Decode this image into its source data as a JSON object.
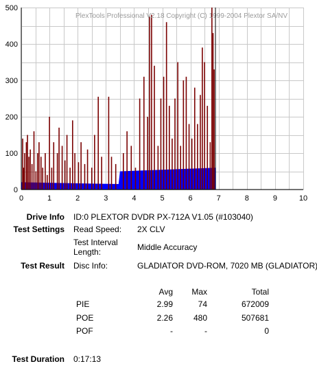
{
  "chart_data": {
    "type": "bar",
    "watermark": "PlexTools Professional V2.18 Copyright (C) 1999-2004 Plextor SA/NV",
    "xlim": [
      0,
      10
    ],
    "ylim": [
      0,
      500
    ],
    "x_ticks": [
      "0",
      "1",
      "2",
      "3",
      "4",
      "5",
      "6",
      "7",
      "8",
      "9",
      "10"
    ],
    "y_ticks": [
      "0",
      "100",
      "200",
      "300",
      "400",
      "500"
    ],
    "grid": true,
    "series": [
      {
        "color": "#7a0000",
        "x": [
          0.05,
          0.08,
          0.12,
          0.18,
          0.22,
          0.27,
          0.32,
          0.38,
          0.45,
          0.52,
          0.58,
          0.63,
          0.7,
          0.76,
          0.85,
          0.92,
          1.0,
          1.08,
          1.15,
          1.28,
          1.34,
          1.45,
          1.55,
          1.62,
          1.73,
          1.82,
          1.9,
          2.03,
          2.12,
          2.25,
          2.35,
          2.5,
          2.6,
          2.73,
          2.85,
          3.1,
          3.2,
          3.35,
          3.62,
          3.75,
          3.9,
          4.05,
          4.2,
          4.35,
          4.48,
          4.55,
          4.62,
          4.72,
          4.85,
          4.95,
          5.05,
          5.15,
          5.25,
          5.35,
          5.45,
          5.55,
          5.65,
          5.75,
          5.85,
          5.95,
          6.05,
          6.15,
          6.25,
          6.35,
          6.42,
          6.5,
          6.6,
          6.7,
          6.76,
          6.8,
          6.84
        ],
        "values": [
          140,
          60,
          100,
          130,
          150,
          90,
          110,
          70,
          160,
          50,
          100,
          130,
          90,
          60,
          100,
          40,
          200,
          60,
          130,
          100,
          170,
          120,
          80,
          150,
          60,
          190,
          100,
          75,
          130,
          70,
          110,
          60,
          150,
          255,
          90,
          255,
          90,
          70,
          100,
          160,
          120,
          60,
          250,
          310,
          200,
          475,
          480,
          340,
          120,
          250,
          310,
          460,
          230,
          140,
          250,
          350,
          120,
          300,
          310,
          180,
          140,
          280,
          180,
          260,
          390,
          350,
          230,
          130,
          500,
          430,
          330
        ]
      },
      {
        "color": "#0000ff",
        "x": [
          0,
          3.45,
          3.5,
          6.9
        ],
        "values": [
          20,
          15,
          50,
          60
        ]
      }
    ]
  },
  "drive_info": {
    "label": "Drive Info",
    "value": "ID:0 PLEXTOR DVDR PX-712A V1.05 (#103040)"
  },
  "test_settings": {
    "label": "Test Settings",
    "read_speed_label": "Read Speed:",
    "read_speed_value": "2X CLV",
    "interval_label_1": "Test Interval",
    "interval_label_2": "Length:",
    "interval_value": "Middle Accuracy"
  },
  "test_result": {
    "label": "Test Result",
    "disc_info_label": "Disc Info:",
    "disc_info_value": "GLADIATOR DVD-ROM, 7020 MB (GLADIATOR)",
    "headers": {
      "avg": "Avg",
      "max": "Max",
      "total": "Total"
    },
    "rows": [
      {
        "name": "PIE",
        "avg": "2.99",
        "max": "74",
        "total": "672009"
      },
      {
        "name": "POE",
        "avg": "2.26",
        "max": "480",
        "total": "507681"
      },
      {
        "name": "POF",
        "avg": "-",
        "max": "-",
        "total": "0"
      }
    ]
  },
  "test_duration": {
    "label": "Test Duration",
    "value": "0:17:13"
  }
}
